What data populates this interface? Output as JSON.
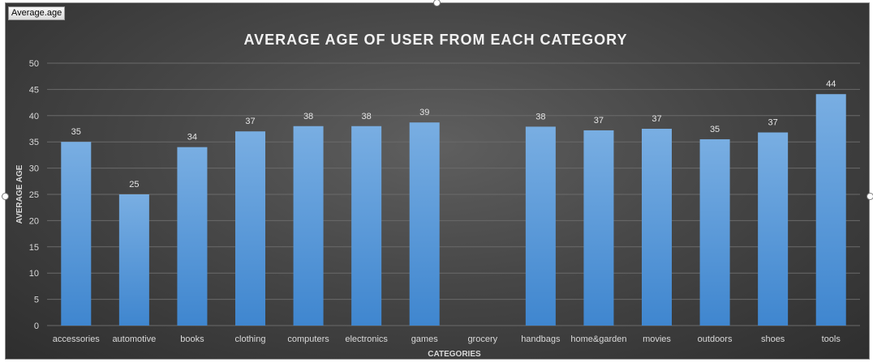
{
  "field_button": "Average.age",
  "colors": {
    "bar_top": "#79aee2",
    "bar_bottom": "#3f86cf",
    "grid": "#6a6a6a"
  },
  "chart_data": {
    "type": "bar",
    "title": "AVERAGE AGE OF USER FROM EACH CATEGORY",
    "xlabel": "CATEGORIES",
    "ylabel": "AVERAGE  AGE",
    "ylim": [
      0,
      50
    ],
    "yticks": [
      0,
      5,
      10,
      15,
      20,
      25,
      30,
      35,
      40,
      45,
      50
    ],
    "grid": true,
    "categories": [
      "accessories",
      "automotive",
      "books",
      "clothing",
      "computers",
      "electronics",
      "games",
      "grocery",
      "handbags",
      "home&garden",
      "movies",
      "outdoors",
      "shoes",
      "tools"
    ],
    "values": [
      35,
      25,
      34,
      37,
      38,
      38,
      38.7,
      null,
      37.9,
      37.2,
      37.5,
      35.5,
      36.8,
      44.1
    ],
    "data_labels": [
      "35",
      "25",
      "34",
      "37",
      "38",
      "38",
      "39",
      "",
      "38",
      "37",
      "37",
      "35",
      "37",
      "44"
    ]
  }
}
